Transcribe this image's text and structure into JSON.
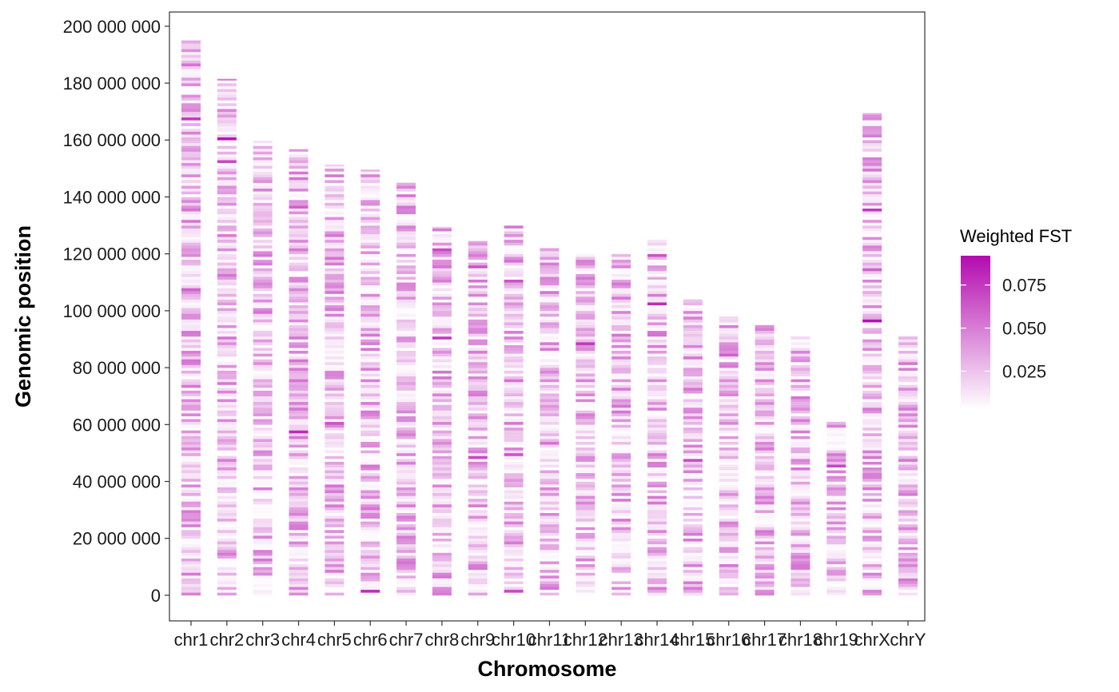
{
  "chart_data": {
    "type": "heatmap",
    "title": "",
    "xlabel": "Chromosome",
    "ylabel": "Genomic position",
    "categories": [
      "chr1",
      "chr2",
      "chr3",
      "chr4",
      "chr5",
      "chr6",
      "chr7",
      "chr8",
      "chr9",
      "chr10",
      "chr11",
      "chr12",
      "chr13",
      "chr14",
      "chr15",
      "chr16",
      "chr17",
      "chr18",
      "chr19",
      "chrX",
      "chrY"
    ],
    "chromosome_lengths": [
      195000000,
      181500000,
      159800000,
      156800000,
      151300000,
      149600000,
      145000000,
      129500000,
      124500000,
      130700000,
      122000000,
      120000000,
      120500000,
      125000000,
      104000000,
      98000000,
      95200000,
      91000000,
      61400000,
      169500000,
      91400000
    ],
    "bin_size": 1000000,
    "y_ticks": [
      0,
      20000000,
      40000000,
      60000000,
      80000000,
      100000000,
      120000000,
      140000000,
      160000000,
      180000000,
      200000000
    ],
    "y_tick_labels": [
      "0",
      "20 000 000",
      "40 000 000",
      "60 000 000",
      "80 000 000",
      "100 000 000",
      "120 000 000",
      "140 000 000",
      "160 000 000",
      "180 000 000",
      "200 000 000"
    ],
    "ylim": [
      -9000000,
      205000000
    ],
    "grid": false,
    "legend": {
      "title": "Weighted FST",
      "placement": "right",
      "labels": [
        "0.075",
        "0.050",
        "0.025"
      ],
      "label_values": [
        0.075,
        0.05,
        0.025
      ],
      "min": 0.003,
      "max": 0.092,
      "color_low": "#ffffff",
      "color_high": "#b30aaf"
    },
    "highlights": [
      {
        "chr": "chr1",
        "pos": 167000000,
        "value": 0.075
      },
      {
        "chr": "chr1",
        "pos": 107000000,
        "value": 0.06
      },
      {
        "chr": "chr2",
        "pos": 160500000,
        "value": 0.088
      },
      {
        "chr": "chr2",
        "pos": 152500000,
        "value": 0.07
      },
      {
        "chr": "chr4",
        "pos": 57500000,
        "value": 0.08
      },
      {
        "chr": "chr4",
        "pos": 136500000,
        "value": 0.06
      },
      {
        "chr": "chr5",
        "pos": 60500000,
        "value": 0.065
      },
      {
        "chr": "chr6",
        "pos": 1500000,
        "value": 0.08
      },
      {
        "chr": "chr8",
        "pos": 90500000,
        "value": 0.075
      },
      {
        "chr": "chr8",
        "pos": 121500000,
        "value": 0.068
      },
      {
        "chr": "chr9",
        "pos": 48500000,
        "value": 0.07
      },
      {
        "chr": "chr9",
        "pos": 115500000,
        "value": 0.065
      },
      {
        "chr": "chr10",
        "pos": 1500000,
        "value": 0.07
      },
      {
        "chr": "chr10",
        "pos": 49500000,
        "value": 0.065
      },
      {
        "chr": "chr10",
        "pos": 110000000,
        "value": 0.065
      },
      {
        "chr": "chr12",
        "pos": 88500000,
        "value": 0.075
      },
      {
        "chr": "chr14",
        "pos": 102500000,
        "value": 0.08
      },
      {
        "chr": "chr14",
        "pos": 119500000,
        "value": 0.065
      },
      {
        "chr": "chr15",
        "pos": 47500000,
        "value": 0.068
      },
      {
        "chr": "chr16",
        "pos": 84500000,
        "value": 0.06
      },
      {
        "chr": "chr19",
        "pos": 45500000,
        "value": 0.07
      },
      {
        "chr": "chrX",
        "pos": 96500000,
        "value": 0.09
      },
      {
        "chr": "chrX",
        "pos": 135500000,
        "value": 0.075
      },
      {
        "chr": "chrX",
        "pos": 114500000,
        "value": 0.06
      }
    ]
  }
}
